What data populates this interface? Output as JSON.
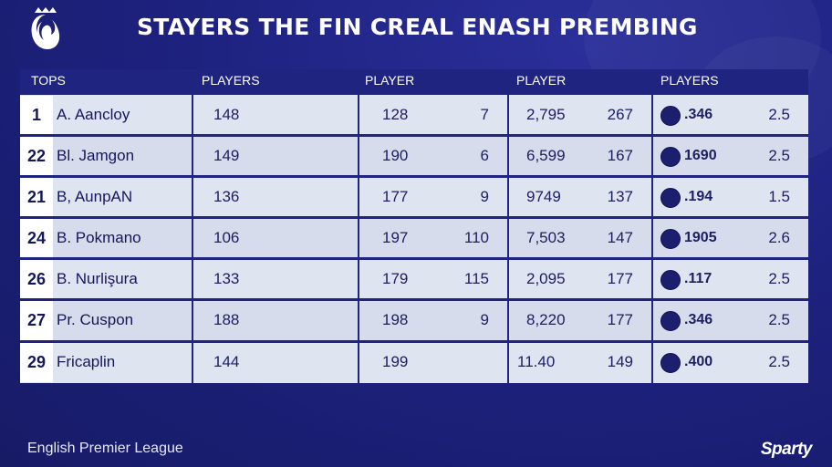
{
  "title": "STAYERS THE FIN CREAL ENASH PREMBING",
  "header": {
    "col1": "TOPS",
    "col2": "PLAYERS",
    "col3": "PLAYER",
    "col4": "PLAYER",
    "col5": "PLAYERS"
  },
  "rows": [
    {
      "rank": "1",
      "name": "A. Aancloy",
      "c1": "148",
      "c2": "128",
      "c3": "7",
      "c4": "2,795",
      "c5": "267",
      "c6": ".346",
      "c7": "2.5"
    },
    {
      "rank": "22",
      "name": "Bl. Jamgon",
      "c1": "149",
      "c2": "190",
      "c3": "6",
      "c4": "6,599",
      "c5": "167",
      "c6": "1690",
      "c7": "2.5"
    },
    {
      "rank": "21",
      "name": "B, AunpAN",
      "c1": "136",
      "c2": "177",
      "c3": "9",
      "c4": "9749",
      "c5": "137",
      "c6": ".194",
      "c7": "1.5"
    },
    {
      "rank": "24",
      "name": "B. Pokmano",
      "c1": "106",
      "c2": "197",
      "c3": "110",
      "c4": "7,503",
      "c5": "147",
      "c6": "1905",
      "c7": "2.6"
    },
    {
      "rank": "26",
      "name": "B. Nurlişura",
      "c1": "133",
      "c2": "179",
      "c3": "115",
      "c4": "2,095",
      "c5": "177",
      "c6": ".117",
      "c7": "2.5"
    },
    {
      "rank": "27",
      "name": "Pr. Cuspon",
      "c1": "188",
      "c2": "198",
      "c3": "9",
      "c4": "8,220",
      "c5": "177",
      "c6": ".346",
      "c7": "2.5"
    },
    {
      "rank": "29",
      "name": "Fricaplin",
      "c1": "144",
      "c2": "199",
      "c3": "",
      "c4": "11.40",
      "c5": "149",
      "c6": ".400",
      "c7": "2.5"
    }
  ],
  "footer": "English Premier League",
  "brand": "Sparty",
  "icons": {
    "logo": "lion-crest-icon",
    "badge": "club-badge-icon"
  },
  "colors": {
    "background": "#1e2280",
    "header": "#1f2480",
    "row": "#dfe4f1",
    "text": "#14175a"
  }
}
